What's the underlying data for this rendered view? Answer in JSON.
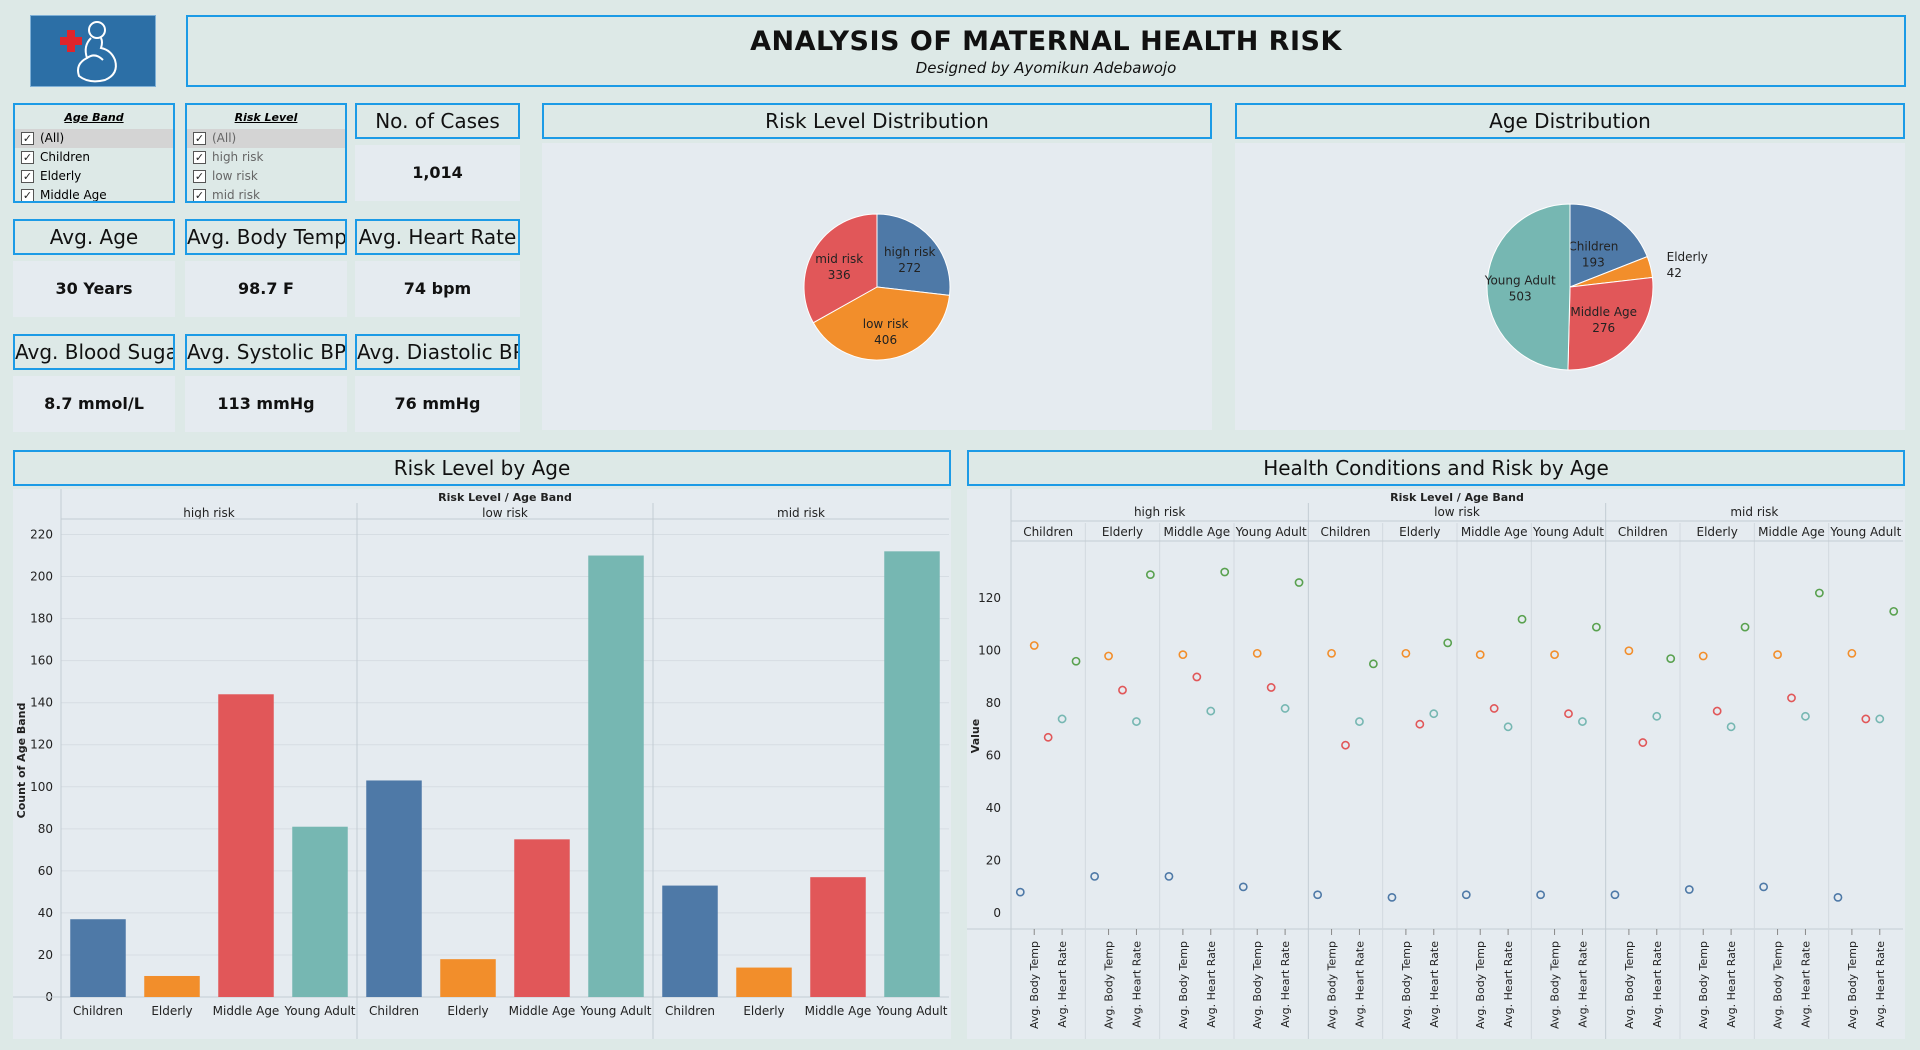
{
  "header": {
    "title": "ANALYSIS OF MATERNAL HEALTH RISK",
    "subtitle": "Designed by Ayomikun Adebawojo",
    "logo_icon": "pregnant-woman-medical-cross-icon"
  },
  "filters": {
    "age_band": {
      "title": "Age Band",
      "items": [
        {
          "label": "(All)",
          "checked": true,
          "selected": true
        },
        {
          "label": "Children",
          "checked": true
        },
        {
          "label": "Elderly",
          "checked": true
        },
        {
          "label": "Middle Age",
          "checked": true
        }
      ]
    },
    "risk_level": {
      "title": "Risk Level",
      "items": [
        {
          "label": "(All)",
          "checked": true,
          "selected": true
        },
        {
          "label": "high risk",
          "checked": true
        },
        {
          "label": "low risk",
          "checked": true
        },
        {
          "label": "mid risk",
          "checked": true
        }
      ]
    }
  },
  "kpis": {
    "cases": {
      "label": "No. of Cases",
      "value": "1,014"
    },
    "age": {
      "label": "Avg. Age",
      "value": "30 Years"
    },
    "body_temp": {
      "label": "Avg. Body Temp",
      "value": "98.7 F"
    },
    "heart_rate": {
      "label": "Avg. Heart Rate",
      "value": "74 bpm"
    },
    "blood_sugar": {
      "label": "Avg. Blood Sugar",
      "value": "8.7 mmol/L"
    },
    "systolic": {
      "label": "Avg. Systolic BP",
      "value": "113 mmHg"
    },
    "diastolic": {
      "label": "Avg. Diastolic BP",
      "value": "76 mmHg"
    }
  },
  "panels": {
    "risk_dist": "Risk Level Distribution",
    "age_dist": "Age Distribution",
    "risk_by_age": "Risk Level by Age",
    "health_by_age": "Health Conditions and Risk by Age"
  },
  "colors": {
    "Children": "#4e79a7",
    "Elderly": "#f28e2b",
    "Middle Age": "#e15759",
    "Young Adult": "#76b7b2",
    "high risk": "#4e79a7",
    "low risk": "#f28e2b",
    "mid risk": "#e15759",
    "Avg. Blood Sugar": "#4e79a7",
    "Avg. Body Temp": "#f28e2b",
    "Avg. Diastolic BP": "#e15759",
    "Avg. Heart Rate": "#76b7b2",
    "Avg. Systolic BP": "#59a14f"
  },
  "chart_data": [
    {
      "id": "risk_dist",
      "type": "pie",
      "title": "Risk Level Distribution",
      "slices": [
        {
          "label": "high risk",
          "value": 272
        },
        {
          "label": "low risk",
          "value": 406
        },
        {
          "label": "mid risk",
          "value": 336
        }
      ]
    },
    {
      "id": "age_dist",
      "type": "pie",
      "title": "Age Distribution",
      "slices": [
        {
          "label": "Children",
          "value": 193
        },
        {
          "label": "Elderly",
          "value": 42
        },
        {
          "label": "Middle Age",
          "value": 276
        },
        {
          "label": "Young Adult",
          "value": 503
        }
      ]
    },
    {
      "id": "risk_by_age",
      "type": "bar",
      "title": "Risk Level by Age",
      "header": "Risk Level  /  Age Band",
      "ylabel": "Count of Age Band",
      "ylim": [
        0,
        225
      ],
      "yticks": [
        0,
        20,
        40,
        60,
        80,
        100,
        120,
        140,
        160,
        180,
        200,
        220
      ],
      "groups": [
        "high risk",
        "low risk",
        "mid risk"
      ],
      "categories": [
        "Children",
        "Elderly",
        "Middle Age",
        "Young Adult"
      ],
      "values": [
        [
          37,
          10,
          144,
          81
        ],
        [
          103,
          18,
          75,
          210
        ],
        [
          53,
          14,
          57,
          212
        ]
      ]
    },
    {
      "id": "health_by_age",
      "type": "scatter",
      "title": "Health Conditions and Risk by Age",
      "header": "Risk Level  /  Age Band",
      "ylabel": "Value",
      "ylim": [
        -3,
        138
      ],
      "yticks": [
        0,
        20,
        40,
        60,
        80,
        100,
        120
      ],
      "groups": [
        "high risk",
        "low risk",
        "mid risk"
      ],
      "categories": [
        "Children",
        "Elderly",
        "Middle Age",
        "Young Adult"
      ],
      "x_labels": [
        "Avg. Body Temp",
        "Avg. Heart Rate"
      ],
      "measures": [
        "Avg. Blood Sugar",
        "Avg. Body Temp",
        "Avg. Diastolic BP",
        "Avg. Heart Rate",
        "Avg. Systolic BP"
      ],
      "values": [
        [
          {
            "Avg. Blood Sugar": 8,
            "Avg. Body Temp": 102,
            "Avg. Diastolic BP": 67,
            "Avg. Heart Rate": 74,
            "Avg. Systolic BP": 96
          },
          {
            "Avg. Blood Sugar": 14,
            "Avg. Body Temp": 98,
            "Avg. Diastolic BP": 85,
            "Avg. Heart Rate": 73,
            "Avg. Systolic BP": 129
          },
          {
            "Avg. Blood Sugar": 14,
            "Avg. Body Temp": 98.5,
            "Avg. Diastolic BP": 90,
            "Avg. Heart Rate": 77,
            "Avg. Systolic BP": 130
          },
          {
            "Avg. Blood Sugar": 10,
            "Avg. Body Temp": 99,
            "Avg. Diastolic BP": 86,
            "Avg. Heart Rate": 78,
            "Avg. Systolic BP": 126
          }
        ],
        [
          {
            "Avg. Blood Sugar": 7,
            "Avg. Body Temp": 99,
            "Avg. Diastolic BP": 64,
            "Avg. Heart Rate": 73,
            "Avg. Systolic BP": 95
          },
          {
            "Avg. Blood Sugar": 6,
            "Avg. Body Temp": 99,
            "Avg. Diastolic BP": 72,
            "Avg. Heart Rate": 76,
            "Avg. Systolic BP": 103
          },
          {
            "Avg. Blood Sugar": 7,
            "Avg. Body Temp": 98.5,
            "Avg. Diastolic BP": 78,
            "Avg. Heart Rate": 71,
            "Avg. Systolic BP": 112
          },
          {
            "Avg. Blood Sugar": 7,
            "Avg. Body Temp": 98.5,
            "Avg. Diastolic BP": 76,
            "Avg. Heart Rate": 73,
            "Avg. Systolic BP": 109
          }
        ],
        [
          {
            "Avg. Blood Sugar": 7,
            "Avg. Body Temp": 100,
            "Avg. Diastolic BP": 65,
            "Avg. Heart Rate": 75,
            "Avg. Systolic BP": 97
          },
          {
            "Avg. Blood Sugar": 9,
            "Avg. Body Temp": 98,
            "Avg. Diastolic BP": 77,
            "Avg. Heart Rate": 71,
            "Avg. Systolic BP": 109
          },
          {
            "Avg. Blood Sugar": 10,
            "Avg. Body Temp": 98.5,
            "Avg. Diastolic BP": 82,
            "Avg. Heart Rate": 75,
            "Avg. Systolic BP": 122
          },
          {
            "Avg. Blood Sugar": 6,
            "Avg. Body Temp": 99,
            "Avg. Diastolic BP": 74,
            "Avg. Heart Rate": 74,
            "Avg. Systolic BP": 115
          }
        ]
      ]
    }
  ]
}
